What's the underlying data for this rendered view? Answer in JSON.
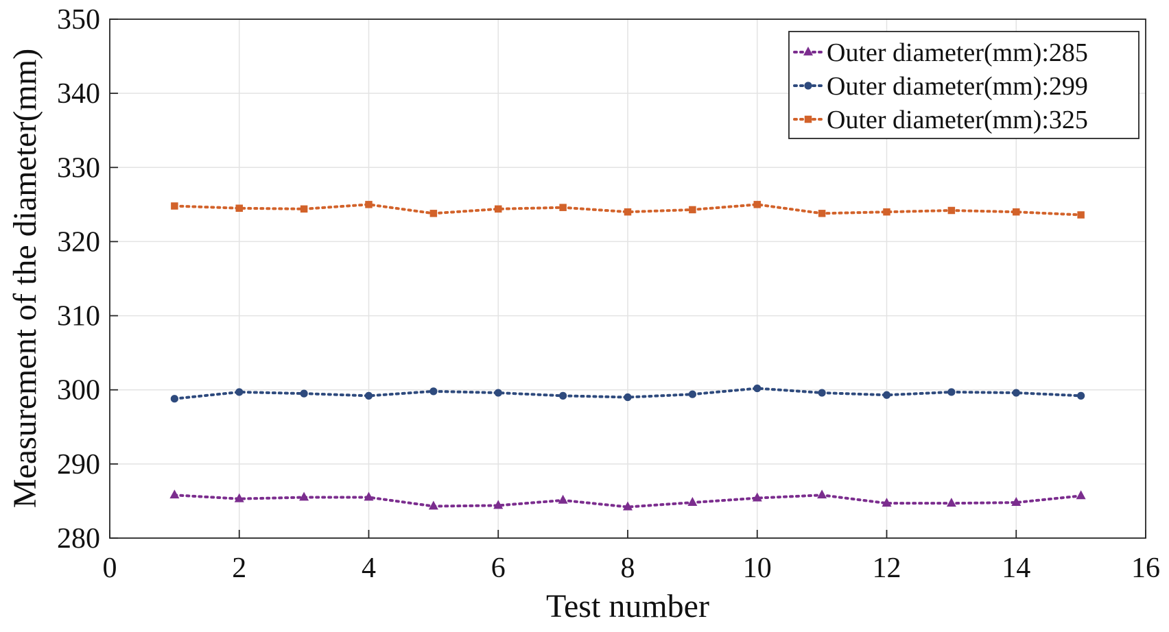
{
  "chart_data": {
    "type": "line",
    "title": "",
    "xlabel": "Test number",
    "ylabel": "Measurement of the diameter(mm)",
    "xlim": [
      0,
      16
    ],
    "ylim": [
      280,
      350
    ],
    "xticks": [
      0,
      2,
      4,
      6,
      8,
      10,
      12,
      14,
      16
    ],
    "yticks": [
      280,
      290,
      300,
      310,
      320,
      330,
      340,
      350
    ],
    "grid": true,
    "legend_position": "top-right",
    "x": [
      1,
      2,
      3,
      4,
      5,
      6,
      7,
      8,
      9,
      10,
      11,
      12,
      13,
      14,
      15
    ],
    "series": [
      {
        "name": "Outer diameter(mm):285",
        "color": "#7b2d8e",
        "marker": "triangle",
        "values": [
          285.8,
          285.3,
          285.5,
          285.5,
          284.3,
          284.4,
          285.1,
          284.2,
          284.8,
          285.4,
          285.8,
          284.7,
          284.7,
          284.8,
          285.7
        ]
      },
      {
        "name": "Outer diameter(mm):299",
        "color": "#2e4a7d",
        "marker": "circle",
        "values": [
          298.8,
          299.7,
          299.5,
          299.2,
          299.8,
          299.6,
          299.2,
          299.0,
          299.4,
          300.2,
          299.6,
          299.3,
          299.7,
          299.6,
          299.2
        ]
      },
      {
        "name": "Outer diameter(mm):325",
        "color": "#d2622a",
        "marker": "square",
        "values": [
          324.8,
          324.5,
          324.4,
          325.0,
          323.8,
          324.4,
          324.6,
          324.0,
          324.3,
          325.0,
          323.8,
          324.0,
          324.2,
          324.0,
          323.6
        ]
      }
    ]
  }
}
